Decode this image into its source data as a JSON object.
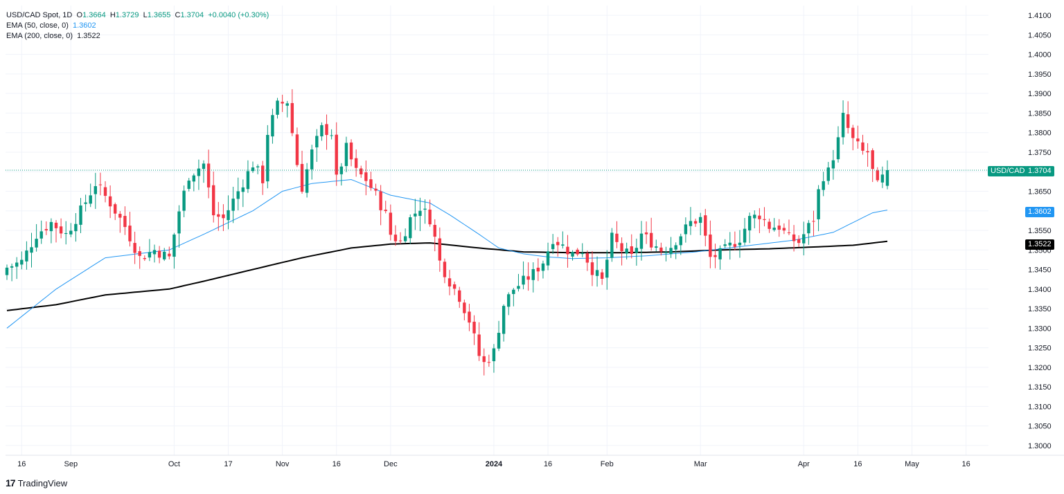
{
  "legend": {
    "symbol": "USD/CAD Spot, 1D",
    "o_label": "O",
    "o_value": "1.3664",
    "h_label": "H",
    "h_value": "1.3729",
    "l_label": "L",
    "l_value": "1.3655",
    "c_label": "C",
    "c_value": "1.3704",
    "change": "+0.0040 (+0.30%)",
    "ema50_label": "EMA (50, close, 0)",
    "ema50_value": "1.3602",
    "ema200_label": "EMA (200, close, 0)",
    "ema200_value": "1.3522"
  },
  "price_tags": {
    "symbol_tag": "USD/CAD",
    "last": "1.3704",
    "ema50": "1.3602",
    "ema200": "1.3522"
  },
  "branding": {
    "logo_mark": "17",
    "logo_text": "TradingView"
  },
  "colors": {
    "up": "#089981",
    "down": "#f23645",
    "ema50": "#2196f3",
    "ema200": "#000000",
    "grid": "#f0f3fa",
    "text": "#131722",
    "last_line": "#089981"
  },
  "chart_data": {
    "type": "candlestick",
    "symbol": "USD/CAD",
    "interval": "1D",
    "ylim": [
      1.2975,
      1.4125
    ],
    "y_ticks": [
      "1.4100",
      "1.4050",
      "1.4000",
      "1.3950",
      "1.3900",
      "1.3850",
      "1.3800",
      "1.3750",
      "1.3700",
      "1.3650",
      "1.3600",
      "1.3550",
      "1.3500",
      "1.3450",
      "1.3400",
      "1.3350",
      "1.3300",
      "1.3250",
      "1.3200",
      "1.3150",
      "1.3100",
      "1.3050",
      "1.3000"
    ],
    "x_ticks": [
      {
        "label": "16",
        "bar": 3,
        "bold": false
      },
      {
        "label": "Sep",
        "bar": 13,
        "bold": false
      },
      {
        "label": "Oct",
        "bar": 34,
        "bold": false
      },
      {
        "label": "17",
        "bar": 45,
        "bold": false
      },
      {
        "label": "Nov",
        "bar": 56,
        "bold": false
      },
      {
        "label": "16",
        "bar": 67,
        "bold": false
      },
      {
        "label": "Dec",
        "bar": 78,
        "bold": false
      },
      {
        "label": "2024",
        "bar": 99,
        "bold": true
      },
      {
        "label": "16",
        "bar": 110,
        "bold": false
      },
      {
        "label": "Feb",
        "bar": 122,
        "bold": false
      },
      {
        "label": "Mar",
        "bar": 141,
        "bold": false
      },
      {
        "label": "Apr",
        "bar": 162,
        "bold": false
      },
      {
        "label": "16",
        "bar": 173,
        "bold": false
      },
      {
        "label": "May",
        "bar": 184,
        "bold": false
      },
      {
        "label": "16",
        "bar": 195,
        "bold": false
      }
    ],
    "bar_count": 180,
    "last_close": 1.3704,
    "close_anchors": [
      [
        0,
        1.3455
      ],
      [
        3,
        1.347
      ],
      [
        6,
        1.354
      ],
      [
        9,
        1.357
      ],
      [
        12,
        1.354
      ],
      [
        15,
        1.36
      ],
      [
        18,
        1.367
      ],
      [
        21,
        1.362
      ],
      [
        24,
        1.356
      ],
      [
        27,
        1.348
      ],
      [
        30,
        1.35
      ],
      [
        33,
        1.348
      ],
      [
        35,
        1.36
      ],
      [
        37,
        1.369
      ],
      [
        40,
        1.372
      ],
      [
        42,
        1.359
      ],
      [
        44,
        1.358
      ],
      [
        47,
        1.365
      ],
      [
        50,
        1.372
      ],
      [
        52,
        1.368
      ],
      [
        53,
        1.38
      ],
      [
        55,
        1.387
      ],
      [
        57,
        1.388
      ],
      [
        59,
        1.372
      ],
      [
        60,
        1.366
      ],
      [
        62,
        1.375
      ],
      [
        64,
        1.381
      ],
      [
        66,
        1.38
      ],
      [
        67,
        1.368
      ],
      [
        69,
        1.376
      ],
      [
        71,
        1.37
      ],
      [
        73,
        1.368
      ],
      [
        75,
        1.364
      ],
      [
        77,
        1.359
      ],
      [
        78,
        1.354
      ],
      [
        80,
        1.352
      ],
      [
        82,
        1.358
      ],
      [
        84,
        1.361
      ],
      [
        86,
        1.358
      ],
      [
        87,
        1.353
      ],
      [
        88,
        1.347
      ],
      [
        90,
        1.342
      ],
      [
        92,
        1.338
      ],
      [
        94,
        1.332
      ],
      [
        96,
        1.323
      ],
      [
        97,
        1.321
      ],
      [
        99,
        1.324
      ],
      [
        101,
        1.336
      ],
      [
        103,
        1.34
      ],
      [
        105,
        1.342
      ],
      [
        107,
        1.344
      ],
      [
        109,
        1.347
      ],
      [
        111,
        1.353
      ],
      [
        113,
        1.351
      ],
      [
        115,
        1.349
      ],
      [
        117,
        1.35
      ],
      [
        119,
        1.345
      ],
      [
        121,
        1.342
      ],
      [
        123,
        1.353
      ],
      [
        125,
        1.35
      ],
      [
        127,
        1.348
      ],
      [
        129,
        1.354
      ],
      [
        131,
        1.352
      ],
      [
        133,
        1.35
      ],
      [
        135,
        1.351
      ],
      [
        137,
        1.354
      ],
      [
        139,
        1.357
      ],
      [
        141,
        1.358
      ],
      [
        143,
        1.348
      ],
      [
        145,
        1.349
      ],
      [
        147,
        1.351
      ],
      [
        149,
        1.353
      ],
      [
        151,
        1.358
      ],
      [
        153,
        1.359
      ],
      [
        155,
        1.356
      ],
      [
        157,
        1.356
      ],
      [
        159,
        1.353
      ],
      [
        161,
        1.352
      ],
      [
        162,
        1.354
      ],
      [
        164,
        1.358
      ],
      [
        165,
        1.365
      ],
      [
        166,
        1.369
      ],
      [
        167,
        1.37
      ],
      [
        169,
        1.378
      ],
      [
        170,
        1.384
      ],
      [
        172,
        1.378
      ],
      [
        174,
        1.375
      ],
      [
        175,
        1.375
      ],
      [
        176,
        1.37
      ],
      [
        177,
        1.3664
      ],
      [
        179,
        1.3704
      ]
    ],
    "ema50_anchors": [
      [
        0,
        1.33
      ],
      [
        10,
        1.34
      ],
      [
        20,
        1.348
      ],
      [
        33,
        1.35
      ],
      [
        40,
        1.354
      ],
      [
        50,
        1.36
      ],
      [
        56,
        1.365
      ],
      [
        62,
        1.367
      ],
      [
        70,
        1.368
      ],
      [
        78,
        1.364
      ],
      [
        86,
        1.362
      ],
      [
        90,
        1.359
      ],
      [
        96,
        1.354
      ],
      [
        100,
        1.3505
      ],
      [
        105,
        1.349
      ],
      [
        110,
        1.3482
      ],
      [
        115,
        1.3478
      ],
      [
        122,
        1.348
      ],
      [
        130,
        1.3485
      ],
      [
        140,
        1.3495
      ],
      [
        150,
        1.351
      ],
      [
        160,
        1.3525
      ],
      [
        168,
        1.3545
      ],
      [
        172,
        1.357
      ],
      [
        176,
        1.3595
      ],
      [
        179,
        1.3602
      ]
    ],
    "ema200_anchors": [
      [
        0,
        1.3345
      ],
      [
        10,
        1.336
      ],
      [
        20,
        1.3385
      ],
      [
        33,
        1.34
      ],
      [
        40,
        1.342
      ],
      [
        50,
        1.345
      ],
      [
        60,
        1.348
      ],
      [
        70,
        1.3505
      ],
      [
        78,
        1.3515
      ],
      [
        86,
        1.3518
      ],
      [
        96,
        1.3505
      ],
      [
        105,
        1.3495
      ],
      [
        115,
        1.3493
      ],
      [
        125,
        1.3493
      ],
      [
        135,
        1.3495
      ],
      [
        145,
        1.35
      ],
      [
        155,
        1.3503
      ],
      [
        165,
        1.3508
      ],
      [
        172,
        1.3512
      ],
      [
        179,
        1.3522
      ]
    ]
  }
}
